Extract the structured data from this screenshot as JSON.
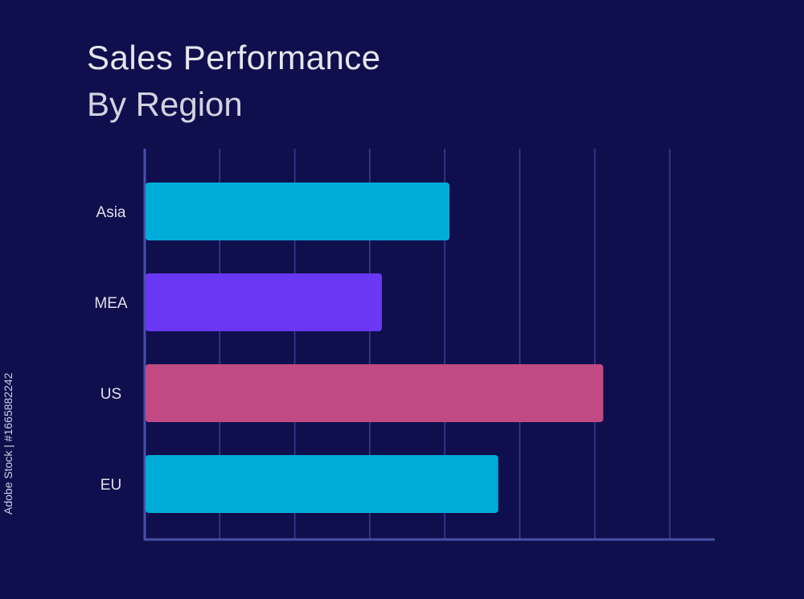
{
  "header": {
    "title": "Sales Performance",
    "subtitle": "By Region"
  },
  "watermark": "Adobe Stock | #1665882242",
  "chart_data": {
    "type": "bar",
    "orientation": "horizontal",
    "title": "Sales Performance",
    "subtitle": "By Region",
    "categories": [
      "Asia",
      "MEA",
      "US",
      "EU"
    ],
    "values": [
      4.05,
      3.15,
      6.1,
      4.7
    ],
    "colors": [
      "#00acd8",
      "#6a37f5",
      "#c24a84",
      "#00acd8"
    ],
    "xlim": [
      0,
      7.5
    ],
    "gridlines": 7,
    "grid": true,
    "legend": "none",
    "colors_theme": {
      "background": "#0f0f4d",
      "grid": "#3a3f8f",
      "axis": "#4a50a8"
    }
  }
}
